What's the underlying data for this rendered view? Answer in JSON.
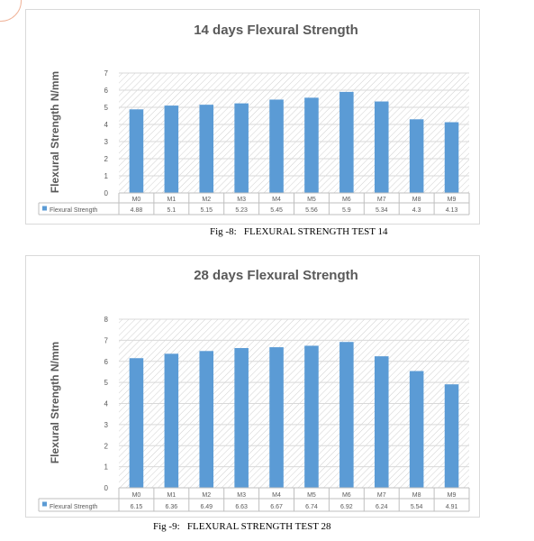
{
  "colors": {
    "bar": "#5b9bd5",
    "title_text": "#595959",
    "axis_text": "#595959",
    "grid": "#d9d9d9",
    "hatch": "#d0d0d0",
    "table_border": "#bfbfbf"
  },
  "chart_data": [
    {
      "type": "bar",
      "title": "14 days Flexural Strength",
      "ylabel": "Flexural  Strength N/mm",
      "xlabel": "",
      "categories": [
        "M0",
        "M1",
        "M2",
        "M3",
        "M4",
        "M5",
        "M6",
        "M7",
        "M8",
        "M9"
      ],
      "series": [
        {
          "name": "Flexural Strength",
          "values": [
            4.88,
            5.1,
            5.15,
            5.23,
            5.45,
            5.56,
            5.9,
            5.34,
            4.3,
            4.13
          ]
        }
      ],
      "value_labels": [
        "4.88",
        "5.1",
        "5.15",
        "5.23",
        "5.45",
        "5.56",
        "5.9",
        "5.34",
        "4.3",
        "4.13"
      ],
      "ylim": [
        0,
        7
      ],
      "yticks": [
        "0",
        "1",
        "2",
        "3",
        "4",
        "5",
        "6",
        "7"
      ],
      "grid": true,
      "plot_background": "hatched",
      "legend": "data table"
    },
    {
      "type": "bar",
      "title": "28 days Flexural Strength",
      "ylabel": "Flexural  Strength N/mm",
      "xlabel": "",
      "categories": [
        "M0",
        "M1",
        "M2",
        "M3",
        "M4",
        "M5",
        "M6",
        "M7",
        "M8",
        "M9"
      ],
      "series": [
        {
          "name": "Flexural Strength",
          "values": [
            6.15,
            6.36,
            6.49,
            6.63,
            6.67,
            6.74,
            6.92,
            6.24,
            5.54,
            4.91
          ]
        }
      ],
      "value_labels": [
        "6.15",
        "6.36",
        "6.49",
        "6.63",
        "6.67",
        "6.74",
        "6.92",
        "6.24",
        "5.54",
        "4.91"
      ],
      "ylim": [
        0,
        8
      ],
      "yticks": [
        "0",
        "1",
        "2",
        "3",
        "4",
        "5",
        "6",
        "7",
        "8"
      ],
      "grid": true,
      "plot_background": "hatched",
      "legend": "data table"
    }
  ],
  "captions": {
    "fig8": "Fig -8:   FLEXURAL STRENGTH TEST 14",
    "fig9": "Fig -9:   FLEXURAL STRENGTH TEST 28"
  }
}
